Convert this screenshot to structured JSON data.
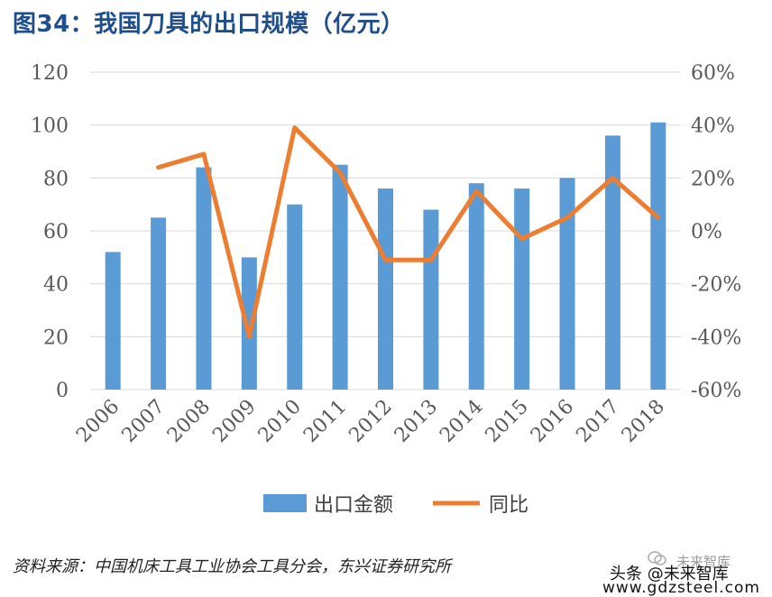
{
  "title": "图34：我国刀具的出口规模（亿元）",
  "source": "资料来源：中国机床工具工业协会工具分会，东兴证券研究所",
  "watermark": {
    "brand": "未来智库",
    "handle": "头条 @未来智库",
    "url": "www.gdzsteel.com"
  },
  "colors": {
    "bar": "#5b9bd5",
    "line": "#ed7d31",
    "grid": "#d9d9d9",
    "axis_text": "#595959",
    "title": "#1f4e8c"
  },
  "chart_data": {
    "type": "bar",
    "categories": [
      "2006",
      "2007",
      "2008",
      "2009",
      "2010",
      "2011",
      "2012",
      "2013",
      "2014",
      "2015",
      "2016",
      "2017",
      "2018"
    ],
    "series": [
      {
        "name": "出口金额",
        "type": "bar",
        "axis": "left",
        "values": [
          52,
          65,
          84,
          50,
          70,
          85,
          76,
          68,
          78,
          76,
          80,
          96,
          101
        ]
      },
      {
        "name": "同比",
        "type": "line",
        "axis": "right",
        "values": [
          null,
          24,
          29,
          -40,
          39,
          22,
          -11,
          -11,
          15,
          -3,
          5,
          20,
          5
        ]
      }
    ],
    "y_left": {
      "ylim": [
        0,
        120
      ],
      "ticks": [
        "0",
        "20",
        "40",
        "60",
        "80",
        "100",
        "120"
      ]
    },
    "y_right": {
      "ylim": [
        -60,
        60
      ],
      "ticks": [
        "-60%",
        "-40%",
        "-20%",
        "0%",
        "20%",
        "40%",
        "60%"
      ]
    },
    "grid": true,
    "legend_position": "bottom"
  }
}
